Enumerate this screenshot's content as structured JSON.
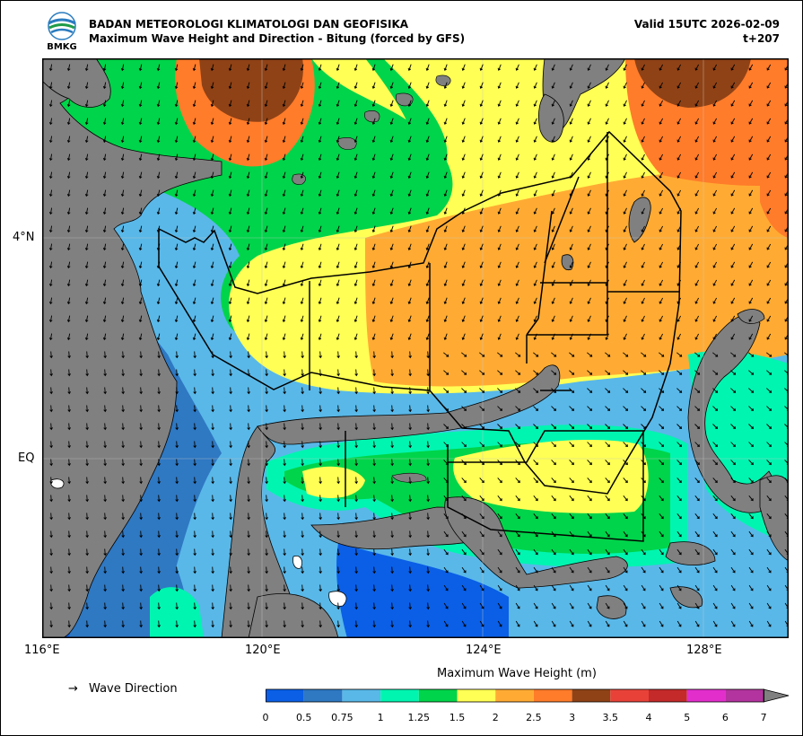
{
  "header": {
    "agency": "BADAN METEOROLOGI KLIMATOLOGI DAN GEOFISIKA",
    "product": "Maximum Wave Height and Direction - Bitung (forced by GFS)",
    "valid": "Valid 15UTC 2026-02-09",
    "lead": "t+207",
    "logo_text": "BMKG"
  },
  "axes": {
    "lat_labels": [
      "4°N",
      "EQ"
    ],
    "lon_labels": [
      "116°E",
      "120°E",
      "124°E",
      "128°E"
    ]
  },
  "legend": {
    "arrow_symbol": "→",
    "wave_direction_label": "Wave Direction",
    "colorbar_title": "Maximum Wave Height (m)",
    "ticks": [
      "0",
      "0.5",
      "0.75",
      "1",
      "1.25",
      "1.5",
      "2",
      "2.5",
      "3",
      "3.5",
      "4",
      "5",
      "6",
      "7"
    ],
    "colors": [
      "#0a5fe6",
      "#2f78c2",
      "#59b8e8",
      "#00f5b0",
      "#00d44a",
      "#ffff55",
      "#ffab33",
      "#ff7c2a",
      "#8f4216",
      "#e84238",
      "#c42a2a",
      "#e22fcc",
      "#b3349e"
    ]
  },
  "map_colors": {
    "land": "#808080",
    "ocean_base": "#59b8e8"
  }
}
